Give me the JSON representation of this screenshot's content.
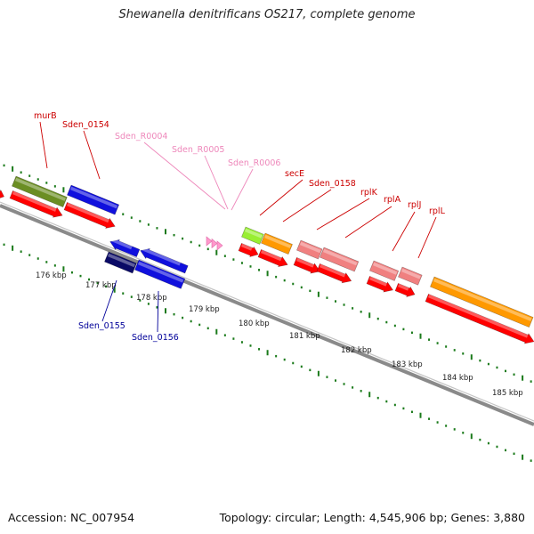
{
  "title": "Shewanella denitrificans OS217, complete genome",
  "footer": {
    "accession": "Accession: NC_007954",
    "topology": "Topology: circular; Length: 4,545,906 bp; Genes: 3,880"
  },
  "colors": {
    "backbone": "#8a8a8a",
    "ticks": "#1a7a1a",
    "cds": "#ff0000",
    "rna": "#ff9999",
    "label_red": "#cc0000",
    "label_pink": "#ee88bb",
    "label_blue": "#000099",
    "olive": "#6b8e23",
    "blue": "#1010dd",
    "navy": "#0a0a66",
    "orange": "#ff9900",
    "lime": "#99ee33",
    "salmon": "#f08080",
    "pink_arrow": "#ff99cc"
  },
  "scale_labels": [
    "176 kbp",
    "177 kbp",
    "178 kbp",
    "179 kbp",
    "180 kbp",
    "181 kbp",
    "182 kbp",
    "183 kbp",
    "184 kbp",
    "185 kbp"
  ],
  "gene_labels": [
    {
      "name": "murB",
      "color": "label_red"
    },
    {
      "name": "Sden_0154",
      "color": "label_red"
    },
    {
      "name": "Sden_R0004",
      "color": "label_pink"
    },
    {
      "name": "Sden_R0005",
      "color": "label_pink"
    },
    {
      "name": "Sden_R0006",
      "color": "label_pink"
    },
    {
      "name": "secE",
      "color": "label_red"
    },
    {
      "name": "Sden_0158",
      "color": "label_red"
    },
    {
      "name": "rplK",
      "color": "label_red"
    },
    {
      "name": "rplA",
      "color": "label_red"
    },
    {
      "name": "rplJ",
      "color": "label_red"
    },
    {
      "name": "rplL",
      "color": "label_red"
    },
    {
      "name": "Sden_0155",
      "color": "label_blue"
    },
    {
      "name": "Sden_0156",
      "color": "label_blue"
    }
  ]
}
